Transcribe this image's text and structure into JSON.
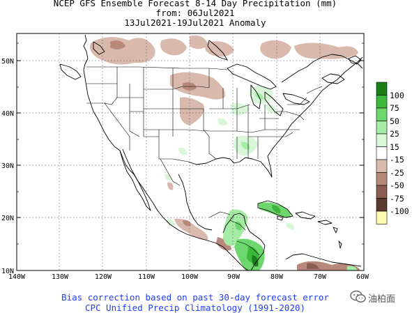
{
  "header": {
    "line1": "NCEP GFS Ensemble Forecast 8-14 Day Precipitation (mm)",
    "line2": "from: 06Jul2021",
    "line3": "13Jul2021-19Jul2021 Anomaly"
  },
  "footer": {
    "line1": "Bias correction based on past 30-day forecast error",
    "line2": "CPC Unified Precip Climatology (1991-2020)"
  },
  "watermark": {
    "icon": "wechat-icon",
    "text": "油柏面"
  },
  "axes": {
    "lat_labels": [
      "50N",
      "40N",
      "30N",
      "20N",
      "10N"
    ],
    "lon_labels": [
      "140W",
      "130W",
      "120W",
      "110W",
      "100W",
      "90W",
      "80W",
      "70W",
      "60W"
    ]
  },
  "legend": {
    "labels": [
      "100",
      "75",
      "50",
      "25",
      "15",
      "-15",
      "-25",
      "-50",
      "-75",
      "-100"
    ],
    "colors": [
      "#1a7f1a",
      "#3cb83c",
      "#6dd66d",
      "#a5eba5",
      "#d8f6d8",
      "#ffffff",
      "#d9b9ad",
      "#b8897a",
      "#8a5d50",
      "#5a3a30",
      "#fff9b3"
    ]
  }
}
